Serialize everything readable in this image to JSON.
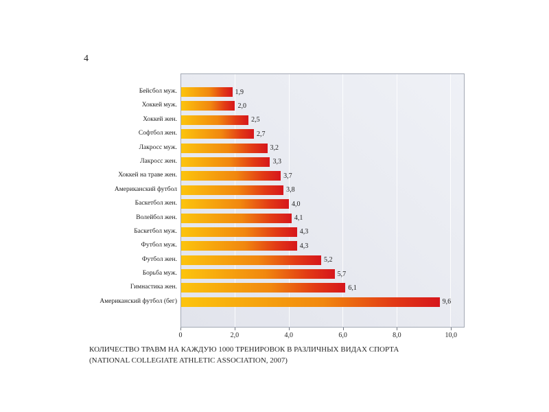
{
  "page": {
    "number": "4"
  },
  "caption": {
    "line1": "КОЛИЧЕСТВО ТРАВМ НА КАЖДУЮ 1000 ТРЕНИРОВОК В РАЗЛИЧНЫХ ВИДАХ СПОРТА",
    "line2": "(NATIONAL COLLEGIATE ATHLETIC ASSOCIATION, 2007)"
  },
  "chart_data": {
    "type": "bar",
    "orientation": "horizontal",
    "title": "КОЛИЧЕСТВО ТРАВМ НА КАЖДУЮ 1000 ТРЕНИРОВОК В РАЗЛИЧНЫХ ВИДАХ СПОРТА (NATIONAL COLLEGIATE ATHLETIC ASSOCIATION, 2007)",
    "categories": [
      "Бейсбол муж.",
      "Хоккей муж.",
      "Хоккей жен.",
      "Софтбол жен.",
      "Лакросс муж.",
      "Лакросс жен.",
      "Хоккей на траве жен.",
      "Американский футбол",
      "Баскетбол жен.",
      "Волейбол жен.",
      "Баскетбол муж.",
      "Футбол муж.",
      "Футбол жен.",
      "Борьба муж.",
      "Гимнастика жен.",
      "Американский футбол (бег)"
    ],
    "values": [
      1.9,
      2.0,
      2.5,
      2.7,
      3.2,
      3.3,
      3.7,
      3.8,
      4.0,
      4.1,
      4.3,
      4.3,
      5.2,
      5.7,
      6.1,
      9.6
    ],
    "value_labels": [
      "1,9",
      "2,0",
      "2,5",
      "2,7",
      "3,2",
      "3,3",
      "3,7",
      "3,8",
      "4,0",
      "4,1",
      "4,3",
      "4,3",
      "5,2",
      "5,7",
      "6,1",
      "9,6"
    ],
    "x_ticks": [
      0,
      2,
      4,
      6,
      8,
      10
    ],
    "x_tick_labels": [
      "0",
      "2,0",
      "4,0",
      "6,0",
      "8,0",
      "10,0"
    ],
    "xlim": [
      0,
      10.5
    ],
    "xlabel": "",
    "ylabel": "",
    "grid": "vertical-white-lines",
    "legend": "none",
    "colors": {
      "bar_gradient_start": "#fcc40d",
      "bar_gradient_mid": "#f1870f",
      "bar_gradient_end": "#d6161c",
      "plot_background": "#e6e8ef",
      "plot_border": "#a2a8b4",
      "text": "#1c1c1c"
    }
  }
}
